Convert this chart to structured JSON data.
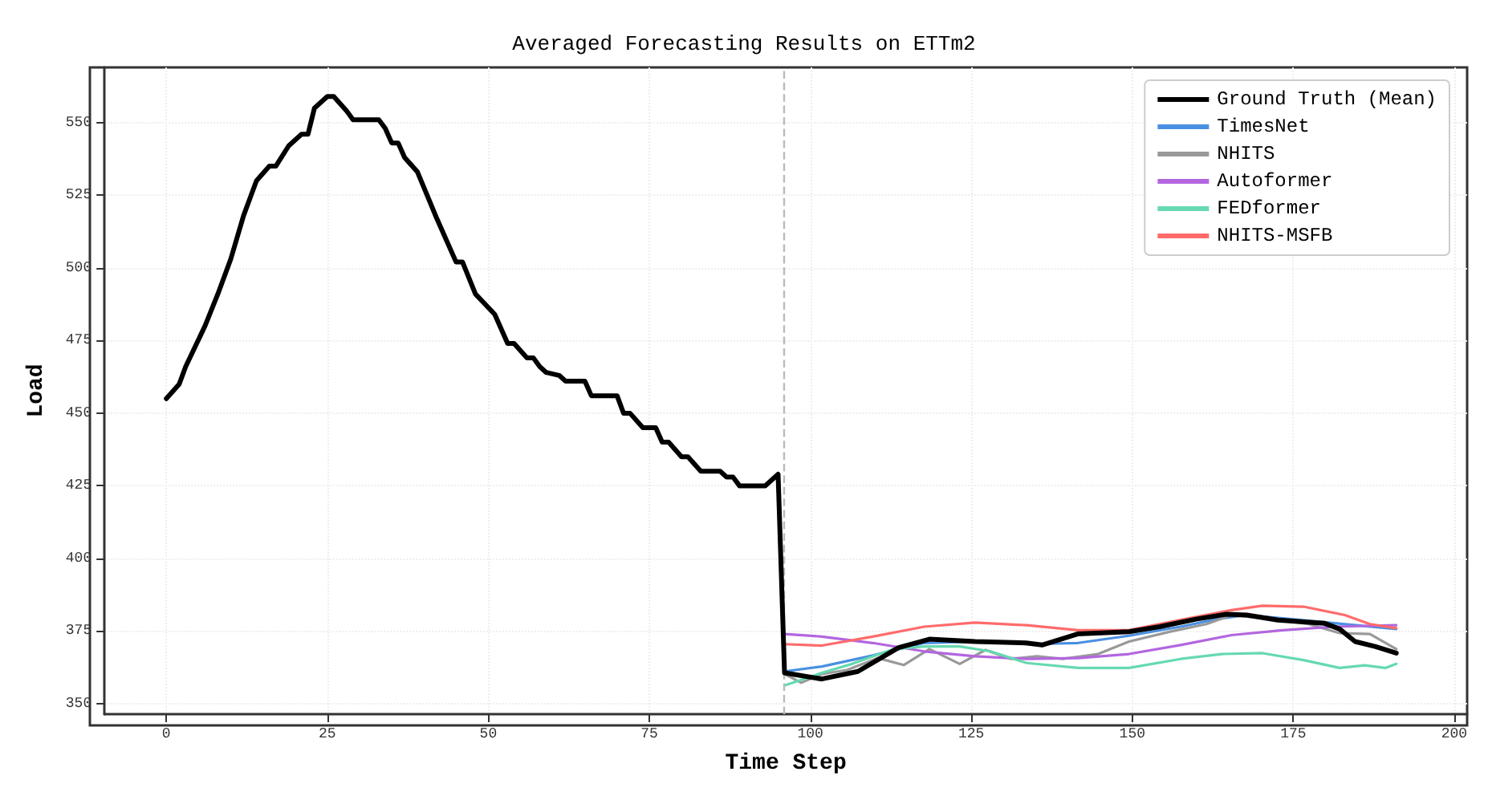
{
  "chart_data": {
    "type": "line",
    "title": "Averaged Forecasting Results on ETTm2",
    "xlabel": "Time Step",
    "ylabel": "Load",
    "xlim": [
      -9.6,
      202
    ],
    "ylim": [
      346.4,
      569
    ],
    "xticks": [
      0,
      25,
      50,
      75,
      100,
      125,
      150,
      175,
      200
    ],
    "yticks": [
      350,
      375,
      400,
      425,
      450,
      475,
      500,
      525,
      550
    ],
    "grid": true,
    "legend": "top right",
    "line_style": "solid",
    "marker": "none",
    "ref_lines": [
      {
        "axis": "x",
        "value": 96,
        "color": "#bbbbbb",
        "line_style": "dashed"
      }
    ],
    "series": [
      {
        "name": "Ground Truth (Mean)",
        "color": "#000000",
        "x": [
          0,
          2,
          3,
          6,
          8,
          10,
          12,
          14,
          16,
          17,
          19,
          21,
          22,
          23,
          25,
          26,
          28,
          29,
          33,
          34,
          35,
          36,
          37,
          39,
          42,
          45,
          46,
          48,
          51,
          53,
          54,
          56,
          57,
          58,
          59,
          61,
          62,
          65,
          66,
          70,
          71,
          72,
          74,
          76,
          77,
          78,
          80,
          81,
          83,
          86,
          87,
          88,
          89,
          93,
          95,
          96,
          101.8,
          107.4,
          113.7,
          118.5,
          125.6,
          133.5,
          136,
          141.5,
          149.5,
          154.3,
          159.9,
          164.6,
          167.8,
          172.6,
          179.8,
          182.2,
          184.6,
          187.7,
          191
        ],
        "values": [
          455,
          460,
          466,
          480,
          491,
          503,
          518,
          530,
          535,
          535,
          542,
          546,
          546,
          555,
          559,
          559,
          554,
          551,
          551,
          548,
          543,
          543,
          538,
          533,
          517,
          502,
          502,
          491,
          484,
          474,
          474,
          469,
          469,
          466,
          464,
          463,
          461,
          461,
          456,
          456,
          450,
          450,
          445,
          445,
          440,
          440,
          435,
          435,
          430,
          430,
          428,
          428,
          425,
          425,
          429,
          360.6,
          358.5,
          361.1,
          369.3,
          372.2,
          371.4,
          370.9,
          370.2,
          374,
          374.8,
          376.5,
          379.1,
          380.8,
          380.5,
          378.8,
          377.7,
          375.7,
          371.4,
          369.7,
          367.4
        ]
      },
      {
        "name": "TimesNet",
        "color": "#4a90e2",
        "x": [
          96,
          101.8,
          109.7,
          117.7,
          125.6,
          133.6,
          141.6,
          149.5,
          157.5,
          163.1,
          167.8,
          173.4,
          181.4,
          191
        ],
        "values": [
          361.1,
          362.8,
          366.6,
          370.9,
          371.4,
          370.5,
          370.9,
          373.4,
          376.5,
          379.1,
          380.5,
          379.4,
          377.7,
          375.7
        ]
      },
      {
        "name": "NHITS",
        "color": "#999999",
        "x": [
          96,
          98.6,
          101.8,
          105.7,
          110.5,
          114.5,
          118.5,
          123.2,
          127.2,
          131.2,
          135.2,
          139.2,
          144.7,
          149.5,
          155.9,
          161.5,
          165.4,
          170.2,
          177.4,
          182.2,
          186.9,
          191
        ],
        "values": [
          360.2,
          357.2,
          360.2,
          361.6,
          365.7,
          363.3,
          368.8,
          363.7,
          368.5,
          365.4,
          366.3,
          365.4,
          367.1,
          371.4,
          374.8,
          377.4,
          380.5,
          379.4,
          377.4,
          374.3,
          374,
          368.8
        ]
      },
      {
        "name": "Autoformer",
        "color": "#b366e0",
        "x": [
          96,
          101.8,
          109.7,
          117.7,
          125.6,
          133.6,
          141.6,
          149.5,
          157.5,
          165.4,
          173.4,
          181.4,
          191
        ],
        "values": [
          374,
          373.1,
          370.9,
          368,
          366.3,
          365.4,
          365.7,
          367.1,
          370.2,
          373.6,
          375.3,
          376.5,
          377
        ]
      },
      {
        "name": "FEDformer",
        "color": "#66d9b0",
        "x": [
          96,
          98.6,
          101.8,
          106.5,
          112.9,
          117.7,
          123.2,
          128,
          133.6,
          141.6,
          149.5,
          157.5,
          163.9,
          170.2,
          176.6,
          182.2,
          186.1,
          189.3,
          191
        ],
        "values": [
          356.3,
          358.2,
          360.6,
          363.7,
          368.8,
          369.7,
          369.7,
          368,
          364,
          362.3,
          362.3,
          365.4,
          367.1,
          367.4,
          365,
          362.3,
          363.2,
          362.3,
          363.7
        ]
      },
      {
        "name": "NHITS-MSFB",
        "color": "#ff6b6b",
        "x": [
          96,
          101.8,
          109.7,
          117.7,
          125.6,
          133.6,
          141.6,
          149.5,
          157.5,
          165.4,
          170.2,
          176.6,
          183,
          186.9,
          191
        ],
        "values": [
          370.5,
          370,
          373.1,
          376.5,
          377.9,
          377,
          375.3,
          375.3,
          378.8,
          382.2,
          383.7,
          383.4,
          380.5,
          377.4,
          376
        ]
      }
    ]
  }
}
